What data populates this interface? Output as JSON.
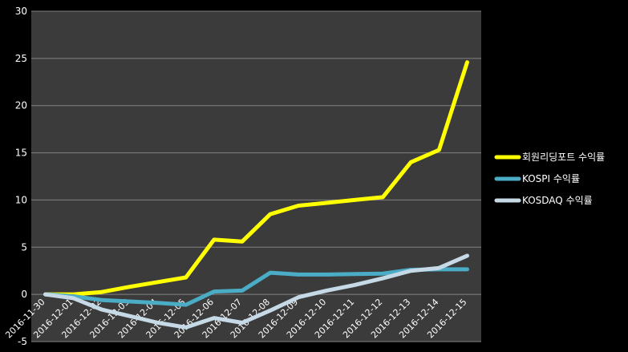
{
  "chart_data": {
    "type": "line",
    "title": "",
    "xlabel": "",
    "ylabel": "",
    "ylim": [
      -5,
      30
    ],
    "yticks": [
      -5,
      0,
      5,
      10,
      15,
      20,
      25,
      30
    ],
    "grid": "horizontal",
    "legend_position": "right",
    "colors": {
      "page_background": "#000000",
      "plot_background": "#3b3b3b",
      "gridline": "#828282"
    },
    "categories": [
      "2016-11-30",
      "2016-12-01",
      "2016-12-02",
      "2016-12-03",
      "2016-12-04",
      "2016-12-05",
      "2016-12-06",
      "2016-12-07",
      "2016-12-08",
      "2016-12-09",
      "2016-12-10",
      "2016-12-11",
      "2016-12-12",
      "2016-12-13",
      "2016-12-14",
      "2016-12-15"
    ],
    "series": [
      {
        "name": "회원리딩포트 수익률",
        "color": "#ffff00",
        "values": [
          0,
          0,
          0.25,
          0.8,
          1.3,
          1.8,
          5.8,
          5.6,
          8.5,
          9.4,
          9.7,
          10.0,
          10.3,
          14.0,
          15.3,
          24.6
        ]
      },
      {
        "name": "KOSPI 수익률",
        "color": "#4bacc6",
        "values": [
          0,
          -0.2,
          -0.6,
          -0.75,
          -0.9,
          -1.1,
          0.3,
          0.4,
          2.3,
          2.1,
          2.1,
          2.15,
          2.2,
          2.6,
          2.65,
          2.65
        ]
      },
      {
        "name": "KOSDAQ 수익률",
        "color": "#c6d9e6",
        "values": [
          0,
          -0.4,
          -1.6,
          -2.3,
          -3.0,
          -3.5,
          -2.5,
          -3.0,
          -1.7,
          -0.3,
          0.4,
          1.0,
          1.7,
          2.5,
          2.8,
          4.1
        ]
      }
    ]
  }
}
